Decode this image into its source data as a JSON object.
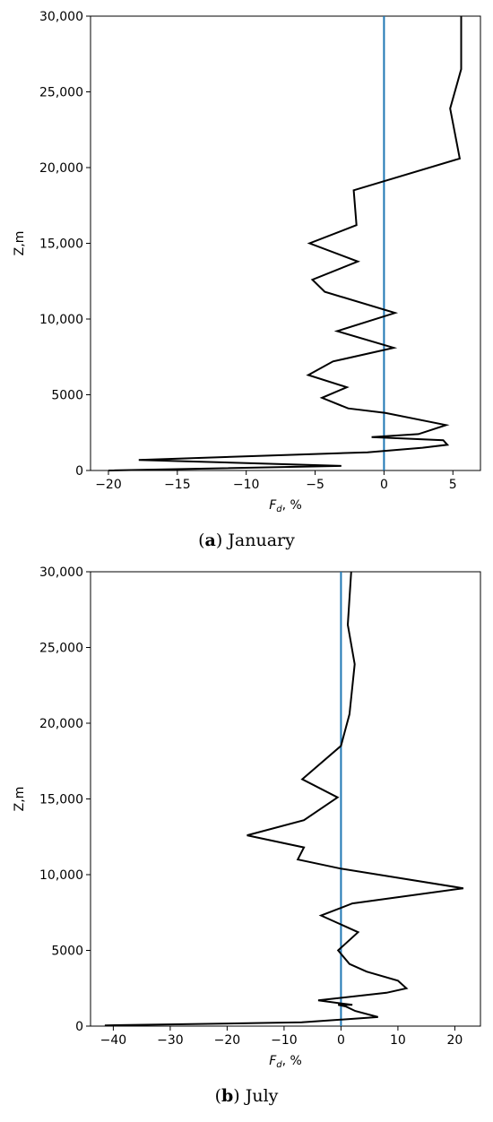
{
  "panels": [
    {
      "caption_letter": "a",
      "caption_text": " January",
      "chart_data": {
        "type": "line",
        "xlabel_main": "F",
        "xlabel_sub": "d",
        "xlabel_unit": ", %",
        "ylabel": "Z,m",
        "xlim": [
          -21.3,
          7.0
        ],
        "ylim": [
          0,
          30000
        ],
        "xticks": [
          -20,
          -15,
          -10,
          -5,
          0,
          5
        ],
        "xtick_labels": [
          "−20",
          "−15",
          "−10",
          "−5",
          "0",
          "5"
        ],
        "yticks": [
          0,
          5000,
          10000,
          15000,
          20000,
          25000,
          30000
        ],
        "ytick_labels": [
          "0",
          "5000",
          "10,000",
          "15,000",
          "20,000",
          "25,000",
          "30,000"
        ],
        "reference_line": {
          "x": 0,
          "color": "#1f77b4"
        },
        "series": [
          {
            "color": "#000000",
            "x": [
              -20.0,
              -3.1,
              -17.8,
              -1.2,
              2.8,
              4.6,
              4.3,
              -0.9,
              2.5,
              4.5,
              0.1,
              -2.6,
              -4.5,
              -2.7,
              -5.5,
              -3.7,
              0.7,
              -3.4,
              0.8,
              -4.3,
              -5.2,
              -1.9,
              -5.4,
              -2.0,
              -2.2,
              5.5,
              4.8,
              5.6,
              5.6
            ],
            "y": [
              0,
              300,
              700,
              1200,
              1500,
              1700,
              2000,
              2200,
              2400,
              3000,
              3800,
              4100,
              4800,
              5500,
              6300,
              7200,
              8100,
              9200,
              10400,
              11800,
              12600,
              13800,
              15000,
              16200,
              18500,
              20600,
              23900,
              26500,
              30000
            ]
          }
        ]
      }
    },
    {
      "caption_letter": "b",
      "caption_text": " July",
      "chart_data": {
        "type": "line",
        "xlabel_main": "F",
        "xlabel_sub": "d",
        "xlabel_unit": ", %",
        "ylabel": "Z,m",
        "xlim": [
          -44.0,
          24.5
        ],
        "ylim": [
          0,
          30000
        ],
        "xticks": [
          -40,
          -30,
          -20,
          -10,
          0,
          10,
          20
        ],
        "xtick_labels": [
          "−40",
          "−30",
          "−20",
          "−10",
          "0",
          "10",
          "20"
        ],
        "yticks": [
          0,
          5000,
          10000,
          15000,
          20000,
          25000,
          30000
        ],
        "ytick_labels": [
          "0",
          "5000",
          "10,000",
          "15,000",
          "20,000",
          "25,000",
          "30,000"
        ],
        "reference_line": {
          "x": 0,
          "color": "#1f77b4"
        },
        "series": [
          {
            "color": "#000000",
            "x": [
              -41.5,
              -6.9,
              6.5,
              2.5,
              0.8,
              -0.5,
              2.0,
              -4.0,
              8.0,
              11.5,
              10.0,
              4.5,
              1.5,
              -0.5,
              3.0,
              -3.5,
              2.0,
              21.5,
              -0.1,
              -7.6,
              -6.5,
              -16.5,
              -6.5,
              -0.6,
              -6.8,
              0.0,
              1.5,
              2.4,
              1.2,
              1.8
            ],
            "y": [
              50,
              250,
              600,
              1000,
              1300,
              1400,
              1400,
              1700,
              2200,
              2500,
              3000,
              3600,
              4100,
              5000,
              6200,
              7300,
              8100,
              9100,
              10400,
              11000,
              11800,
              12600,
              13600,
              15100,
              16300,
              18500,
              20600,
              23900,
              26500,
              30000
            ]
          }
        ]
      }
    }
  ]
}
